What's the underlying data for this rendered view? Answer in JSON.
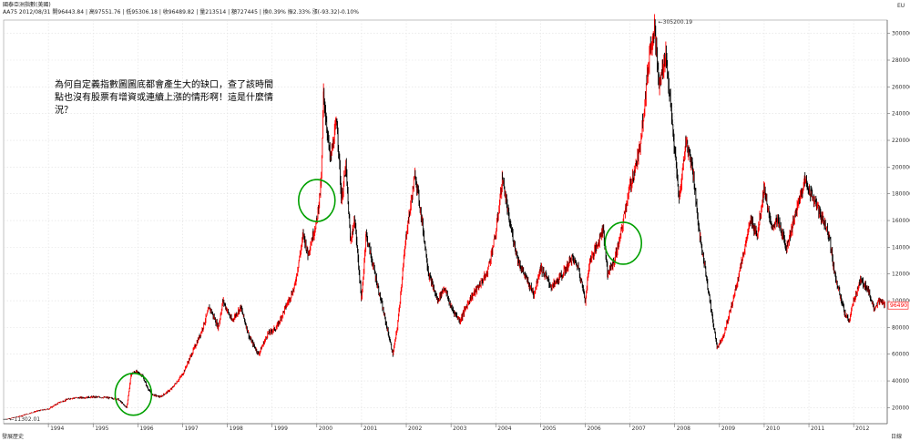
{
  "header": {
    "title": "國泰亞洲指數(美國)",
    "quote_line": "AA75 2012/08/31 開96443.84 | 高97551.76 | 低95306.18 | 收96489.82 | 量213514 | 額727445 | 換0.39% 振2.33% 漲(-93.32)-0.10%"
  },
  "top_right_label": "EU",
  "bottom_left_label": "發展歷史",
  "bottom_right_label": "日線",
  "annotation": "為何自定義指數圖圖底都會產生大的缺口，查了該時間點也沒有股票有增資或連續上漲的情形啊！這是什麼情況？",
  "annotation_lines": [
    "為何自定義指數圖圖底都會產生大的缺口，查了該時間",
    "點也沒有股票有增資或連續上漲的情形啊！這是什麼情",
    "況？"
  ],
  "chart_data": {
    "type": "candlestick",
    "title": "國泰亞洲指數(美國)",
    "x_ticks": [
      "1994",
      "1995",
      "1996",
      "1997",
      "1998",
      "1999",
      "2000",
      "2001",
      "2002",
      "2003",
      "2004",
      "2005",
      "2006",
      "2007",
      "2008",
      "2009",
      "2010",
      "2011",
      "2012"
    ],
    "y_ticks": [
      20000,
      40000,
      60000,
      80000,
      100000,
      120000,
      140000,
      160000,
      180000,
      200000,
      220000,
      240000,
      260000,
      280000,
      300000
    ],
    "ylim": [
      8000,
      310000
    ],
    "xlim": [
      1993.0,
      2012.75
    ],
    "grid": true,
    "low_label": "11302.01",
    "high_label": "305200.19",
    "last_value_label": "96490",
    "up_color": "#ff0000",
    "down_color": "#000000",
    "circle_color": "#00a000",
    "series": [
      {
        "values": [
          [
            1993.05,
            11302
          ],
          [
            1993.3,
            13000
          ],
          [
            1993.55,
            15500
          ],
          [
            1993.75,
            17500
          ],
          [
            1994.0,
            19000
          ],
          [
            1994.25,
            24000
          ],
          [
            1994.5,
            27000
          ],
          [
            1994.75,
            27500
          ],
          [
            1995.0,
            28000
          ],
          [
            1995.3,
            27500
          ],
          [
            1995.55,
            26500
          ],
          [
            1995.75,
            20000
          ],
          [
            1995.85,
            45000
          ],
          [
            1995.95,
            47000
          ],
          [
            1996.1,
            44000
          ],
          [
            1996.2,
            36000
          ],
          [
            1996.3,
            30000
          ],
          [
            1996.5,
            28000
          ],
          [
            1996.75,
            34000
          ],
          [
            1997.0,
            45000
          ],
          [
            1997.2,
            60000
          ],
          [
            1997.4,
            75000
          ],
          [
            1997.6,
            95000
          ],
          [
            1997.8,
            80000
          ],
          [
            1997.9,
            100000
          ],
          [
            1998.1,
            85000
          ],
          [
            1998.3,
            95000
          ],
          [
            1998.5,
            72000
          ],
          [
            1998.7,
            60000
          ],
          [
            1998.9,
            75000
          ],
          [
            1999.1,
            80000
          ],
          [
            1999.3,
            95000
          ],
          [
            1999.5,
            110000
          ],
          [
            1999.6,
            130000
          ],
          [
            1999.7,
            150000
          ],
          [
            1999.8,
            135000
          ],
          [
            2000.0,
            160000
          ],
          [
            2000.1,
            190000
          ],
          [
            2000.15,
            255000
          ],
          [
            2000.3,
            205000
          ],
          [
            2000.45,
            235000
          ],
          [
            2000.55,
            175000
          ],
          [
            2000.65,
            200000
          ],
          [
            2000.75,
            145000
          ],
          [
            2000.85,
            160000
          ],
          [
            2001.0,
            100000
          ],
          [
            2001.1,
            150000
          ],
          [
            2001.3,
            120000
          ],
          [
            2001.5,
            90000
          ],
          [
            2001.7,
            60000
          ],
          [
            2001.8,
            80000
          ],
          [
            2002.0,
            150000
          ],
          [
            2002.2,
            195000
          ],
          [
            2002.35,
            160000
          ],
          [
            2002.5,
            120000
          ],
          [
            2002.7,
            100000
          ],
          [
            2002.85,
            110000
          ],
          [
            2003.0,
            95000
          ],
          [
            2003.2,
            85000
          ],
          [
            2003.4,
            100000
          ],
          [
            2003.6,
            110000
          ],
          [
            2003.8,
            120000
          ],
          [
            2004.0,
            150000
          ],
          [
            2004.15,
            192000
          ],
          [
            2004.3,
            160000
          ],
          [
            2004.5,
            130000
          ],
          [
            2004.7,
            115000
          ],
          [
            2004.85,
            105000
          ],
          [
            2005.0,
            125000
          ],
          [
            2005.25,
            110000
          ],
          [
            2005.5,
            120000
          ],
          [
            2005.7,
            132000
          ],
          [
            2005.85,
            125000
          ],
          [
            2006.0,
            100000
          ],
          [
            2006.1,
            130000
          ],
          [
            2006.25,
            140000
          ],
          [
            2006.4,
            155000
          ],
          [
            2006.5,
            120000
          ],
          [
            2006.65,
            130000
          ],
          [
            2006.8,
            150000
          ],
          [
            2006.9,
            170000
          ],
          [
            2007.0,
            185000
          ],
          [
            2007.2,
            210000
          ],
          [
            2007.35,
            255000
          ],
          [
            2007.45,
            290000
          ],
          [
            2007.55,
            305200
          ],
          [
            2007.65,
            260000
          ],
          [
            2007.8,
            285000
          ],
          [
            2007.95,
            230000
          ],
          [
            2008.1,
            175000
          ],
          [
            2008.25,
            220000
          ],
          [
            2008.4,
            200000
          ],
          [
            2008.55,
            150000
          ],
          [
            2008.7,
            120000
          ],
          [
            2008.85,
            85000
          ],
          [
            2008.95,
            65000
          ],
          [
            2009.1,
            75000
          ],
          [
            2009.3,
            100000
          ],
          [
            2009.5,
            130000
          ],
          [
            2009.7,
            160000
          ],
          [
            2009.85,
            150000
          ],
          [
            2010.0,
            185000
          ],
          [
            2010.15,
            155000
          ],
          [
            2010.3,
            160000
          ],
          [
            2010.5,
            140000
          ],
          [
            2010.7,
            165000
          ],
          [
            2010.9,
            190000
          ],
          [
            2011.05,
            180000
          ],
          [
            2011.25,
            165000
          ],
          [
            2011.45,
            150000
          ],
          [
            2011.55,
            125000
          ],
          [
            2011.65,
            110000
          ],
          [
            2011.8,
            90000
          ],
          [
            2011.9,
            85000
          ],
          [
            2012.0,
            100000
          ],
          [
            2012.15,
            115000
          ],
          [
            2012.3,
            110000
          ],
          [
            2012.45,
            95000
          ],
          [
            2012.6,
            100000
          ],
          [
            2012.7,
            96490
          ]
        ]
      }
    ],
    "circles": [
      {
        "x": 1995.9,
        "y": 30000
      },
      {
        "x": 2000.0,
        "y": 175000
      },
      {
        "x": 2006.85,
        "y": 143000
      }
    ]
  }
}
